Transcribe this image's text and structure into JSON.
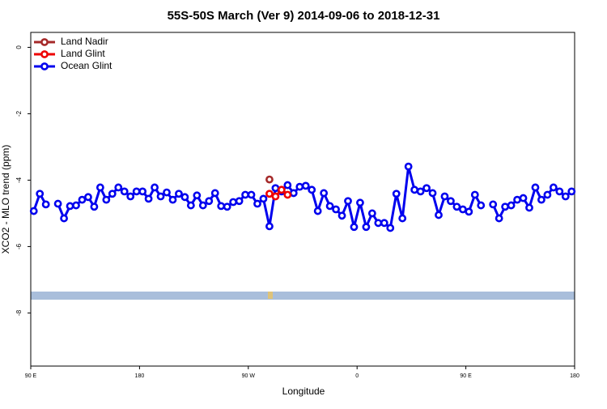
{
  "chart_data": {
    "type": "line",
    "title": "55S-50S March (Ver 9)   2014-09-06 to 2018-12-31",
    "xlabel": "Longitude",
    "ylabel": "XCO2 - MLO trend (ppm)",
    "xlim": [
      90,
      540
    ],
    "xticks": [
      {
        "value": 90,
        "label": "90 E"
      },
      180,
      {
        "value": 270,
        "label": "90 W"
      },
      {
        "value": 360,
        "label": "0"
      },
      {
        "value": 450,
        "label": "90 E"
      },
      {
        "value": 540,
        "label": "180"
      }
    ],
    "ylim": [
      -9.6,
      0.45
    ],
    "yticks": [
      0,
      -2,
      -4,
      -6,
      -8
    ],
    "legend": "top-left",
    "series": [
      {
        "name": "Ocean Glint",
        "color": "#0000ee",
        "x": [
          92.5,
          97.5,
          102.5,
          107.5,
          112.5,
          117.5,
          122.5,
          127.5,
          132.5,
          137.5,
          142.5,
          147.5,
          152.5,
          157.5,
          162.5,
          167.5,
          172.5,
          177.5,
          182.5,
          187.5,
          192.5,
          197.5,
          202.5,
          207.5,
          212.5,
          217.5,
          222.5,
          227.5,
          232.5,
          237.5,
          242.5,
          247.5,
          252.5,
          257.5,
          262.5,
          267.5,
          272.5,
          277.5,
          282.5,
          287.5,
          292.5,
          297.5,
          302.5,
          307.5,
          312.5,
          317.5,
          322.5,
          327.5,
          332.5,
          337.5,
          342.5,
          347.5,
          352.5,
          357.5,
          362.5,
          367.5,
          372.5,
          377.5,
          382.5,
          387.5,
          392.5,
          397.5,
          402.5,
          407.5,
          412.5,
          417.5,
          422.5,
          427.5,
          432.5,
          437.5,
          442.5,
          447.5,
          452.5,
          457.5,
          462.5,
          467.5,
          472.5,
          477.5,
          482.5,
          487.5,
          492.5,
          497.5,
          502.5,
          507.5,
          512.5,
          517.5,
          522.5,
          527.5,
          532.5,
          537.5
        ],
        "values": [
          -4.93,
          -4.41,
          -4.73,
          null,
          -4.71,
          -5.15,
          -4.78,
          -4.76,
          -4.59,
          -4.51,
          -4.8,
          -4.22,
          -4.59,
          -4.41,
          -4.22,
          -4.34,
          -4.49,
          -4.34,
          -4.34,
          -4.56,
          -4.22,
          -4.49,
          -4.37,
          -4.59,
          -4.41,
          -4.51,
          -4.76,
          -4.46,
          -4.76,
          -4.63,
          -4.39,
          -4.78,
          -4.8,
          -4.66,
          -4.63,
          -4.44,
          -4.44,
          -4.71,
          -4.56,
          -5.39,
          -4.24,
          -4.34,
          -4.15,
          -4.39,
          -4.2,
          -4.17,
          -4.29,
          -4.93,
          -4.39,
          -4.78,
          -4.88,
          -5.07,
          -4.63,
          -5.41,
          -4.68,
          -5.41,
          -5.0,
          -5.29,
          -5.29,
          -5.44,
          -4.41,
          -5.15,
          -3.59,
          -4.29,
          -4.34,
          -4.24,
          -4.39,
          -5.05,
          -4.49,
          -4.63,
          -4.8,
          -4.88,
          -4.95,
          -4.44,
          -4.76,
          null,
          -4.73,
          -5.15,
          -4.8,
          -4.76,
          -4.59,
          -4.54,
          -4.83,
          -4.22,
          -4.59,
          -4.44,
          -4.22,
          -4.34,
          -4.49,
          -4.34
        ]
      },
      {
        "name": "Land Glint",
        "color": "#ee0000",
        "x": [
          287.5,
          292.5,
          297.5,
          302.5
        ],
        "values": [
          -4.41,
          -4.49,
          -4.29,
          -4.44
        ]
      },
      {
        "name": "Land Nadir",
        "color": "#a52a2a",
        "x": [
          287.5
        ],
        "values": [
          -3.98
        ]
      }
    ]
  }
}
